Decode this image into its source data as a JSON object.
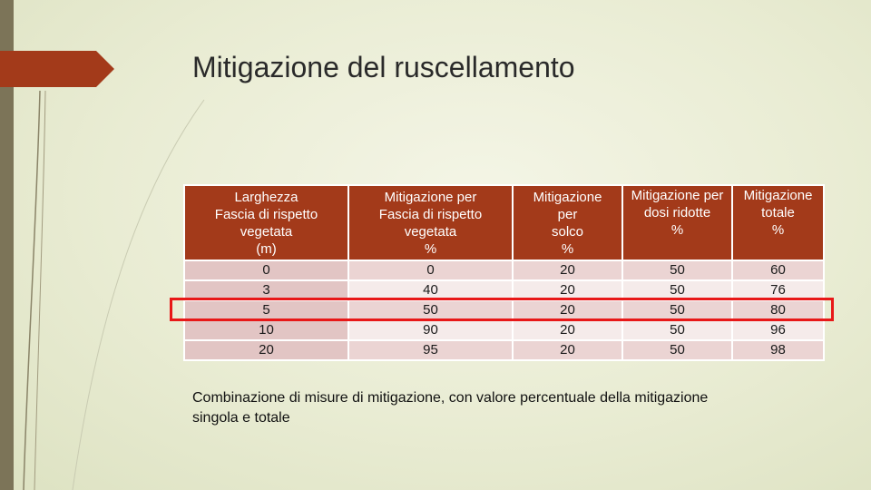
{
  "slide": {
    "title": "Mitigazione del ruscellamento",
    "caption": "Combinazione di misure di mitigazione, con valore percentuale della mitigazione singola e totale",
    "colors": {
      "header_bg": "#a33a1a",
      "row_odd": "#ebd4d3",
      "row_even": "#f5ebea",
      "highlight_border": "#e81818",
      "left_bar": "#7c7458",
      "accent_tab": "#a33a1a"
    }
  },
  "table": {
    "headers": [
      [
        "Larghezza",
        "Fascia di rispetto",
        "vegetata",
        "(m)"
      ],
      [
        "Mitigazione per",
        "Fascia di rispetto",
        "vegetata",
        "%"
      ],
      [
        "Mitigazione",
        "per",
        "solco",
        "%"
      ],
      [
        "Mitigazione per",
        "dosi ridotte",
        "%"
      ],
      [
        "Mitigazione",
        "totale",
        "%"
      ]
    ],
    "rows": [
      [
        "0",
        "0",
        "20",
        "50",
        "60"
      ],
      [
        "3",
        "40",
        "20",
        "50",
        "76"
      ],
      [
        "5",
        "50",
        "20",
        "50",
        "80"
      ],
      [
        "10",
        "90",
        "20",
        "50",
        "96"
      ],
      [
        "20",
        "95",
        "20",
        "50",
        "98"
      ]
    ],
    "highlighted_row": 2
  }
}
